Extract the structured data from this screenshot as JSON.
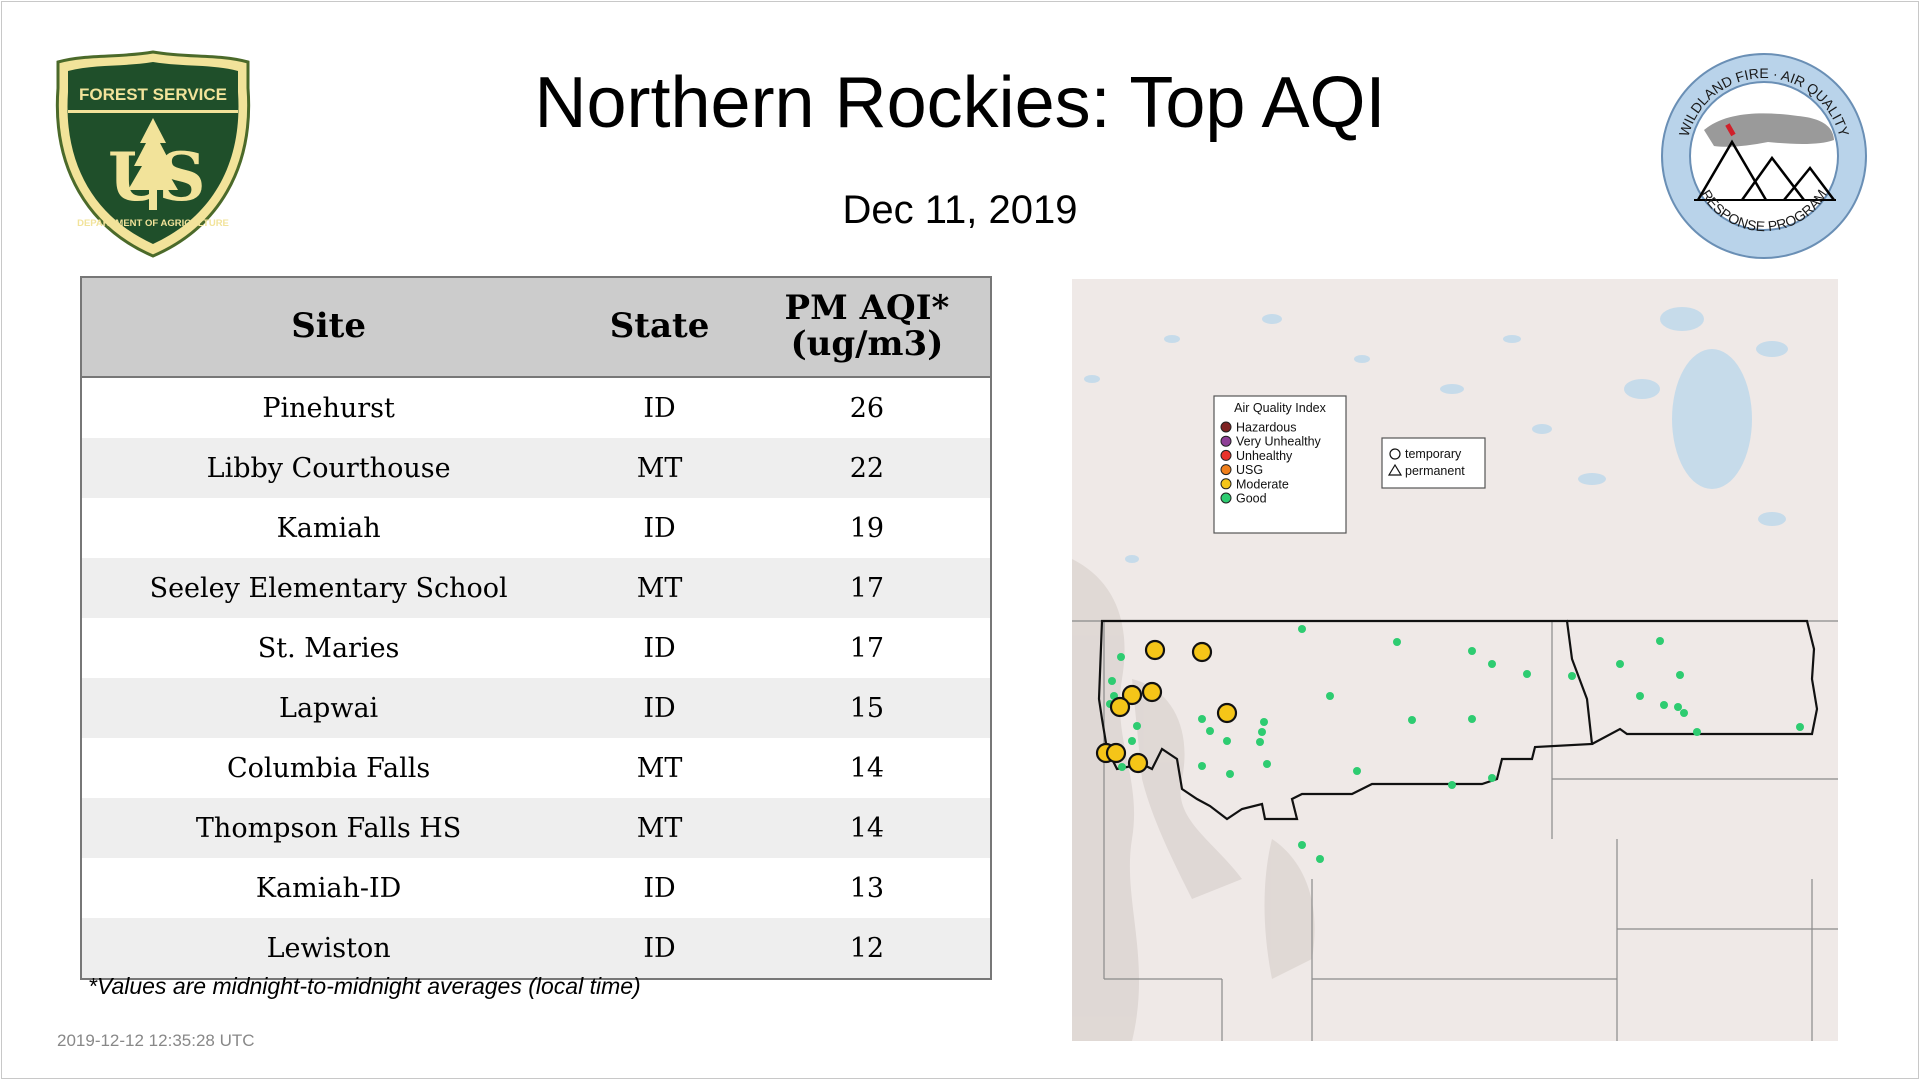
{
  "header": {
    "title": "Northern Rockies: Top AQI",
    "date": "Dec 11, 2019"
  },
  "logos": {
    "left": {
      "name": "forest-service-shield",
      "top_text": "FOREST SERVICE",
      "bottom_text": "DEPARTMENT OF AGRICULTURE",
      "letters": "U S"
    },
    "right": {
      "name": "wildland-fire-air-quality-badge",
      "top_text": "WILDLAND FIRE · AIR QUALITY",
      "bottom_text": "RESPONSE PROGRAM"
    }
  },
  "table": {
    "headers": {
      "site": "Site",
      "state": "State",
      "aqi_line1": "PM AQI*",
      "aqi_line2": "(ug/m3)"
    },
    "rows": [
      {
        "site": "Pinehurst",
        "state": "ID",
        "aqi": "26"
      },
      {
        "site": "Libby Courthouse",
        "state": "MT",
        "aqi": "22"
      },
      {
        "site": "Kamiah",
        "state": "ID",
        "aqi": "19"
      },
      {
        "site": "Seeley Elementary School",
        "state": "MT",
        "aqi": "17"
      },
      {
        "site": "St. Maries",
        "state": "ID",
        "aqi": "17"
      },
      {
        "site": "Lapwai",
        "state": "ID",
        "aqi": "15"
      },
      {
        "site": "Columbia Falls",
        "state": "MT",
        "aqi": "14"
      },
      {
        "site": "Thompson Falls HS",
        "state": "MT",
        "aqi": "14"
      },
      {
        "site": "Kamiah-ID",
        "state": "ID",
        "aqi": "13"
      },
      {
        "site": "Lewiston",
        "state": "ID",
        "aqi": "12"
      }
    ]
  },
  "footnote": "*Values are midnight-to-midnight averages (local time)",
  "timestamp": "2019-12-12 12:35:28 UTC",
  "map": {
    "legend": {
      "title": "Air Quality Index",
      "items": [
        {
          "label": "Hazardous",
          "color": "#7e2222"
        },
        {
          "label": "Very Unhealthy",
          "color": "#8f3f97"
        },
        {
          "label": "Unhealthy",
          "color": "#e8322a"
        },
        {
          "label": "USG",
          "color": "#f07f1b"
        },
        {
          "label": "Moderate",
          "color": "#f5c518"
        },
        {
          "label": "Good",
          "color": "#2ecc71"
        }
      ]
    },
    "shape_legend": {
      "temporary": "temporary",
      "permanent": "permanent"
    },
    "colors": {
      "moderate": "#f5c518",
      "good": "#2ecc71",
      "land": "#efe9e7",
      "water": "#c6dbea"
    }
  }
}
